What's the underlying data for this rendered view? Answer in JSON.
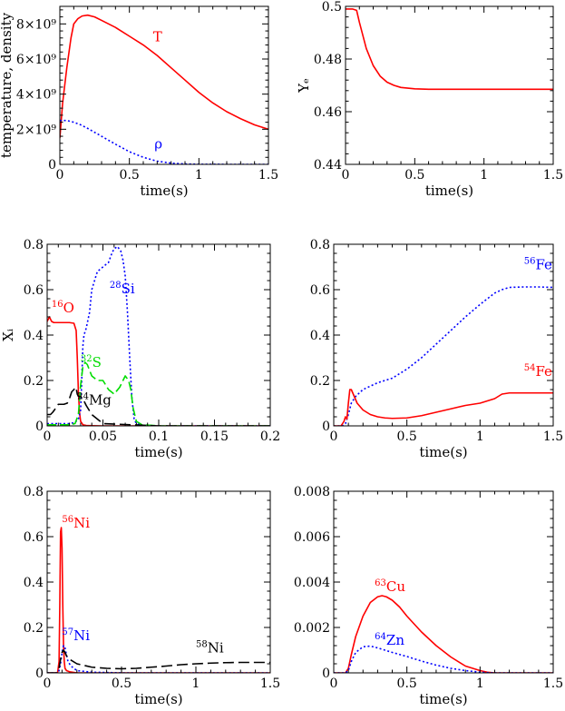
{
  "chart_data": [
    {
      "id": "p1",
      "type": "line",
      "xlabel": "time(s)",
      "ylabel": "temperature, density",
      "xlim": [
        0,
        1.5
      ],
      "ylim": [
        0,
        9000000000.0
      ],
      "xticks": [
        0,
        0.5,
        1,
        1.5
      ],
      "xtick_labels": [
        "0",
        "0.5",
        "1",
        "1.5"
      ],
      "yticks": [
        0,
        2000000000.0,
        4000000000.0,
        6000000000.0,
        8000000000.0
      ],
      "ytick_labels": [
        "0",
        "2×10⁹",
        "4×10⁹",
        "6×10⁹",
        "8×10⁹"
      ],
      "series": [
        {
          "name": "T",
          "color": "#ff0000",
          "dash": "solid",
          "x": [
            0,
            0.02,
            0.05,
            0.08,
            0.1,
            0.13,
            0.16,
            0.2,
            0.25,
            0.3,
            0.4,
            0.5,
            0.6,
            0.7,
            0.8,
            0.9,
            1.0,
            1.1,
            1.2,
            1.3,
            1.4,
            1.5
          ],
          "y": [
            1500000000.0,
            3500000000.0,
            5500000000.0,
            7200000000.0,
            8000000000.0,
            8300000000.0,
            8450000000.0,
            8500000000.0,
            8400000000.0,
            8200000000.0,
            7800000000.0,
            7300000000.0,
            6800000000.0,
            6200000000.0,
            5500000000.0,
            4800000000.0,
            4100000000.0,
            3500000000.0,
            3000000000.0,
            2600000000.0,
            2250000000.0,
            2000000000.0
          ]
        },
        {
          "name": "ρ",
          "color": "#0000ff",
          "dash": "dotted",
          "x": [
            0,
            0.05,
            0.1,
            0.15,
            0.2,
            0.3,
            0.4,
            0.5,
            0.6,
            0.7,
            0.8,
            0.9,
            1.0,
            1.2,
            1.5
          ],
          "y": [
            2500000000.0,
            2500000000.0,
            2400000000.0,
            2250000000.0,
            2050000000.0,
            1600000000.0,
            1150000000.0,
            720000000.0,
            400000000.0,
            180000000.0,
            70000000.0,
            20000000.0,
            5000000.0,
            0,
            0
          ]
        }
      ],
      "labels": [
        {
          "sup": "",
          "text": "T",
          "color": "#ff0000",
          "x": 0.67,
          "y": 7000000000.0
        },
        {
          "sup": "",
          "text": "ρ",
          "color": "#0000ff",
          "x": 0.68,
          "y": 900000000.0
        }
      ]
    },
    {
      "id": "p2",
      "type": "line",
      "xlabel": "time(s)",
      "ylabel": "Yₑ",
      "xlim": [
        0,
        1.5
      ],
      "ylim": [
        0.44,
        0.5
      ],
      "xticks": [
        0,
        0.5,
        1,
        1.5
      ],
      "xtick_labels": [
        "0",
        "0.5",
        "1",
        "1.5"
      ],
      "yticks": [
        0.44,
        0.46,
        0.48,
        0.5
      ],
      "ytick_labels": [
        "0.44",
        "0.46",
        "0.48",
        "0.5"
      ],
      "series": [
        {
          "name": "Ye",
          "color": "#ff0000",
          "dash": "solid",
          "x": [
            0,
            0.05,
            0.08,
            0.1,
            0.15,
            0.2,
            0.25,
            0.3,
            0.35,
            0.4,
            0.5,
            0.6,
            0.8,
            1.0,
            1.5
          ],
          "y": [
            0.499,
            0.499,
            0.4985,
            0.494,
            0.484,
            0.4775,
            0.4735,
            0.4712,
            0.47,
            0.4692,
            0.4687,
            0.4685,
            0.4685,
            0.4685,
            0.4685
          ]
        }
      ],
      "labels": []
    },
    {
      "id": "p3",
      "type": "line",
      "xlabel": "time(s)",
      "ylabel": "Xᵢ",
      "xlim": [
        0,
        0.2
      ],
      "ylim": [
        0,
        0.8
      ],
      "xticks": [
        0,
        0.05,
        0.1,
        0.15,
        0.2
      ],
      "xtick_labels": [
        "0",
        "0.05",
        "0.1",
        "0.15",
        "0.2"
      ],
      "yticks": [
        0,
        0.2,
        0.4,
        0.6,
        0.8
      ],
      "ytick_labels": [
        "0",
        "0.2",
        "0.4",
        "0.6",
        "0.8"
      ],
      "series": [
        {
          "name": "16O",
          "color": "#ff0000",
          "dash": "solid",
          "x": [
            0,
            0.002,
            0.004,
            0.006,
            0.01,
            0.015,
            0.02,
            0.024,
            0.026,
            0.027,
            0.028,
            0.029,
            0.03,
            0.032,
            0.035,
            0.04,
            0.05,
            0.06,
            0.08,
            0.1,
            0.15,
            0.2
          ],
          "y": [
            0.46,
            0.48,
            0.46,
            0.455,
            0.455,
            0.455,
            0.455,
            0.452,
            0.42,
            0.3,
            0.15,
            0.06,
            0.02,
            0.005,
            0.002,
            0.001,
            0,
            0,
            0,
            0,
            0,
            0
          ]
        },
        {
          "name": "28Si",
          "color": "#0000ff",
          "dash": "dotted",
          "x": [
            0,
            0.005,
            0.01,
            0.015,
            0.02,
            0.025,
            0.028,
            0.03,
            0.031,
            0.032,
            0.033,
            0.035,
            0.038,
            0.04,
            0.045,
            0.05,
            0.055,
            0.058,
            0.06,
            0.063,
            0.066,
            0.068,
            0.07,
            0.072,
            0.074,
            0.076,
            0.078,
            0.08,
            0.085,
            0.1,
            0.15,
            0.2
          ],
          "y": [
            0.01,
            0.01,
            0.01,
            0.01,
            0.01,
            0.015,
            0.03,
            0.07,
            0.2,
            0.35,
            0.4,
            0.43,
            0.5,
            0.6,
            0.68,
            0.7,
            0.72,
            0.76,
            0.78,
            0.79,
            0.77,
            0.73,
            0.66,
            0.5,
            0.3,
            0.12,
            0.03,
            0.01,
            0.002,
            0,
            0,
            0
          ]
        },
        {
          "name": "32S",
          "color": "#00dd00",
          "dash": "dashed",
          "x": [
            0,
            0.02,
            0.025,
            0.028,
            0.03,
            0.032,
            0.034,
            0.036,
            0.04,
            0.045,
            0.05,
            0.055,
            0.06,
            0.065,
            0.07,
            0.073,
            0.075,
            0.077,
            0.08,
            0.085,
            0.1,
            0.15,
            0.2
          ],
          "y": [
            0.005,
            0.005,
            0.01,
            0.05,
            0.18,
            0.26,
            0.28,
            0.27,
            0.22,
            0.2,
            0.2,
            0.16,
            0.14,
            0.17,
            0.22,
            0.2,
            0.16,
            0.08,
            0.02,
            0.005,
            0,
            0,
            0
          ]
        },
        {
          "name": "24Mg",
          "color": "#000000",
          "dash": "longdash",
          "x": [
            0,
            0.003,
            0.005,
            0.008,
            0.01,
            0.015,
            0.018,
            0.02,
            0.022,
            0.024,
            0.025,
            0.026,
            0.027,
            0.028,
            0.03,
            0.032,
            0.035,
            0.04,
            0.05,
            0.1,
            0.2
          ],
          "y": [
            0.05,
            0.05,
            0.06,
            0.08,
            0.095,
            0.095,
            0.1,
            0.12,
            0.15,
            0.16,
            0.17,
            0.165,
            0.14,
            0.13,
            0.13,
            0.12,
            0.09,
            0.05,
            0.01,
            0,
            0
          ]
        }
      ],
      "labels": [
        {
          "sup": "16",
          "text": "O",
          "color": "#ff0000",
          "x": 0.004,
          "y": 0.5
        },
        {
          "sup": "28",
          "text": "Si",
          "color": "#0000ff",
          "x": 0.056,
          "y": 0.585
        },
        {
          "sup": "32",
          "text": "S",
          "color": "#00dd00",
          "x": 0.03,
          "y": 0.26
        },
        {
          "sup": "24",
          "text": "Mg",
          "color": "#000000",
          "x": 0.027,
          "y": 0.095
        }
      ]
    },
    {
      "id": "p4",
      "type": "line",
      "xlabel": "time(s)",
      "ylabel": "",
      "xlim": [
        0,
        1.5
      ],
      "ylim": [
        0,
        0.8
      ],
      "xticks": [
        0,
        0.5,
        1,
        1.5
      ],
      "xtick_labels": [
        "0",
        "0.5",
        "1",
        "1.5"
      ],
      "yticks": [
        0,
        0.2,
        0.4,
        0.6,
        0.8
      ],
      "ytick_labels": [
        "0",
        "0.2",
        "0.4",
        "0.6",
        "0.8"
      ],
      "series": [
        {
          "name": "56Fe",
          "color": "#0000ff",
          "dash": "dotted",
          "x": [
            0,
            0.06,
            0.08,
            0.1,
            0.12,
            0.15,
            0.2,
            0.3,
            0.4,
            0.5,
            0.6,
            0.7,
            0.8,
            0.9,
            1.0,
            1.1,
            1.15,
            1.2,
            1.3,
            1.4,
            1.5
          ],
          "y": [
            0,
            0,
            0.01,
            0.05,
            0.1,
            0.13,
            0.16,
            0.19,
            0.21,
            0.25,
            0.3,
            0.36,
            0.42,
            0.48,
            0.535,
            0.585,
            0.6,
            0.61,
            0.612,
            0.612,
            0.61
          ]
        },
        {
          "name": "54Fe",
          "color": "#ff0000",
          "dash": "solid",
          "x": [
            0,
            0.05,
            0.07,
            0.08,
            0.09,
            0.1,
            0.11,
            0.12,
            0.14,
            0.16,
            0.2,
            0.25,
            0.3,
            0.35,
            0.4,
            0.5,
            0.6,
            0.7,
            0.8,
            0.9,
            1.0,
            1.1,
            1.15,
            1.2,
            1.3,
            1.4,
            1.5
          ],
          "y": [
            0,
            0,
            0.02,
            0.04,
            0.03,
            0.1,
            0.16,
            0.16,
            0.13,
            0.1,
            0.07,
            0.05,
            0.04,
            0.035,
            0.033,
            0.035,
            0.045,
            0.06,
            0.075,
            0.09,
            0.1,
            0.12,
            0.14,
            0.145,
            0.145,
            0.145,
            0.145
          ]
        }
      ],
      "labels": [
        {
          "sup": "56",
          "text": "Fe",
          "color": "#0000ff",
          "x": 1.3,
          "y": 0.69
        },
        {
          "sup": "54",
          "text": "Fe",
          "color": "#ff0000",
          "x": 1.3,
          "y": 0.22
        }
      ]
    },
    {
      "id": "p5",
      "type": "line",
      "xlabel": "time(s)",
      "ylabel": "",
      "xlim": [
        0,
        1.5
      ],
      "ylim": [
        0,
        0.8
      ],
      "xticks": [
        0,
        0.5,
        1,
        1.5
      ],
      "xtick_labels": [
        "0",
        "0.5",
        "1",
        "1.5"
      ],
      "yticks": [
        0,
        0.2,
        0.4,
        0.6,
        0.8
      ],
      "ytick_labels": [
        "0",
        "0.2",
        "0.4",
        "0.6",
        "0.8"
      ],
      "series": [
        {
          "name": "56Ni",
          "color": "#ff0000",
          "dash": "solid",
          "x": [
            0,
            0.07,
            0.08,
            0.085,
            0.09,
            0.095,
            0.1,
            0.105,
            0.11,
            0.115,
            0.12,
            0.13,
            0.15,
            0.2,
            0.5,
            1.0,
            1.5
          ],
          "y": [
            0,
            0,
            0.05,
            0.3,
            0.62,
            0.64,
            0.55,
            0.3,
            0.12,
            0.05,
            0.02,
            0.01,
            0.005,
            0,
            0,
            0,
            0
          ]
        },
        {
          "name": "57Ni",
          "color": "#0000ff",
          "dash": "dotted",
          "x": [
            0,
            0.07,
            0.08,
            0.09,
            0.1,
            0.11,
            0.12,
            0.13,
            0.14,
            0.16,
            0.2,
            0.3,
            0.5,
            1.0,
            1.5
          ],
          "y": [
            0,
            0,
            0.01,
            0.04,
            0.09,
            0.12,
            0.11,
            0.08,
            0.05,
            0.03,
            0.01,
            0.003,
            0,
            0,
            0
          ]
        },
        {
          "name": "58Ni",
          "color": "#000000",
          "dash": "longdash",
          "x": [
            0,
            0.07,
            0.08,
            0.09,
            0.1,
            0.11,
            0.12,
            0.13,
            0.15,
            0.2,
            0.3,
            0.4,
            0.5,
            0.6,
            0.7,
            0.8,
            0.9,
            1.0,
            1.1,
            1.2,
            1.3,
            1.4,
            1.5
          ],
          "y": [
            0,
            0,
            0.02,
            0.06,
            0.09,
            0.1,
            0.09,
            0.075,
            0.06,
            0.04,
            0.025,
            0.02,
            0.018,
            0.02,
            0.025,
            0.03,
            0.036,
            0.04,
            0.043,
            0.045,
            0.046,
            0.046,
            0.046
          ]
        }
      ],
      "labels": [
        {
          "sup": "56",
          "text": "Ni",
          "color": "#ff0000",
          "x": 0.1,
          "y": 0.64
        },
        {
          "sup": "57",
          "text": "Ni",
          "color": "#0000ff",
          "x": 0.1,
          "y": 0.145
        },
        {
          "sup": "58",
          "text": "Ni",
          "color": "#000000",
          "x": 1.0,
          "y": 0.09
        }
      ]
    },
    {
      "id": "p6",
      "type": "line",
      "xlabel": "time(s)",
      "ylabel": "",
      "xlim": [
        0,
        1.5
      ],
      "ylim": [
        0,
        0.008
      ],
      "xticks": [
        0,
        0.5,
        1,
        1.5
      ],
      "xtick_labels": [
        "0",
        "0.5",
        "1",
        "1.5"
      ],
      "yticks": [
        0,
        0.002,
        0.004,
        0.006,
        0.008
      ],
      "ytick_labels": [
        "0",
        "0.002",
        "0.004",
        "0.006",
        "0.008"
      ],
      "series": [
        {
          "name": "63Cu",
          "color": "#ff0000",
          "dash": "solid",
          "x": [
            0,
            0.08,
            0.1,
            0.12,
            0.15,
            0.2,
            0.25,
            0.3,
            0.33,
            0.36,
            0.4,
            0.45,
            0.5,
            0.6,
            0.7,
            0.8,
            0.9,
            1.0,
            1.05,
            1.1,
            1.5
          ],
          "y": [
            0,
            0,
            0.0002,
            0.0008,
            0.0016,
            0.0025,
            0.0031,
            0.00335,
            0.0034,
            0.00335,
            0.0032,
            0.0029,
            0.0025,
            0.0018,
            0.0012,
            0.0007,
            0.0003,
            0.0001,
            3e-05,
            0,
            0
          ]
        },
        {
          "name": "64Zn",
          "color": "#0000ff",
          "dash": "dotted",
          "x": [
            0,
            0.08,
            0.1,
            0.12,
            0.15,
            0.2,
            0.25,
            0.3,
            0.35,
            0.4,
            0.5,
            0.6,
            0.7,
            0.8,
            0.9,
            1.0,
            1.05,
            1.1,
            1.5
          ],
          "y": [
            0,
            0,
            0.0001,
            0.0005,
            0.0009,
            0.00115,
            0.00118,
            0.0011,
            0.001,
            0.0009,
            0.00072,
            0.00052,
            0.00034,
            0.0002,
            0.0001,
            3e-05,
            1e-05,
            0,
            0
          ]
        }
      ],
      "labels": [
        {
          "sup": "63",
          "text": "Cu",
          "color": "#ff0000",
          "x": 0.28,
          "y": 0.0036
        },
        {
          "sup": "64",
          "text": "Zn",
          "color": "#0000ff",
          "x": 0.28,
          "y": 0.00125
        }
      ]
    }
  ]
}
